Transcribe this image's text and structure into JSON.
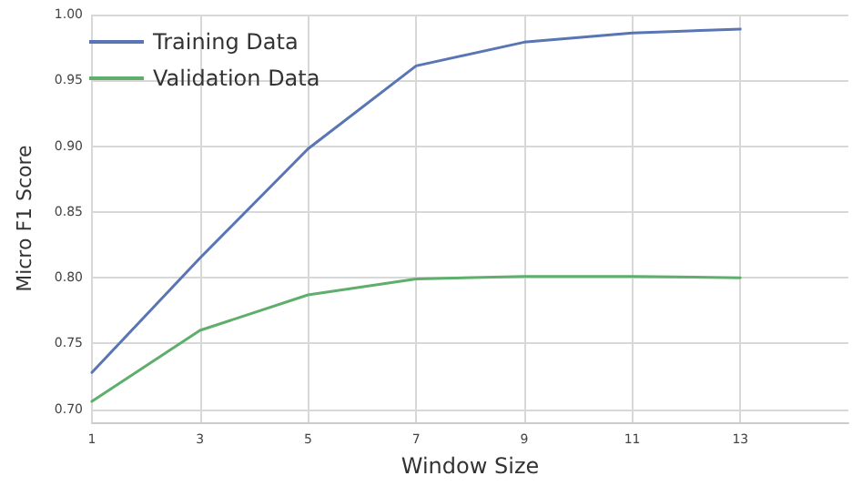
{
  "chart_data": {
    "type": "line",
    "xlabel": "Window Size",
    "ylabel": "Micro F1 Score",
    "x": [
      1,
      3,
      5,
      7,
      9,
      11,
      13
    ],
    "series": [
      {
        "name": "Training Data",
        "color": "#5975b4",
        "values": [
          0.728,
          0.815,
          0.898,
          0.961,
          0.979,
          0.986,
          0.989
        ]
      },
      {
        "name": "Validation Data",
        "color": "#5fae6c",
        "values": [
          0.706,
          0.76,
          0.787,
          0.799,
          0.801,
          0.801,
          0.8
        ]
      }
    ],
    "xlim": [
      1,
      15
    ],
    "xticks": [
      1,
      3,
      5,
      7,
      9,
      11,
      13
    ],
    "ylim": [
      0.69,
      1.0
    ],
    "yticks": [
      {
        "value": 0.7,
        "label": "0.70"
      },
      0.75,
      {
        "value": 0.8,
        "label": "0.80"
      },
      0.85,
      {
        "value": 0.9,
        "label": "0.90"
      },
      0.95,
      {
        "value": 1,
        "label": "1.00"
      }
    ],
    "grid": true,
    "legend": "top left",
    "marker": "none",
    "line_style": "solid"
  }
}
